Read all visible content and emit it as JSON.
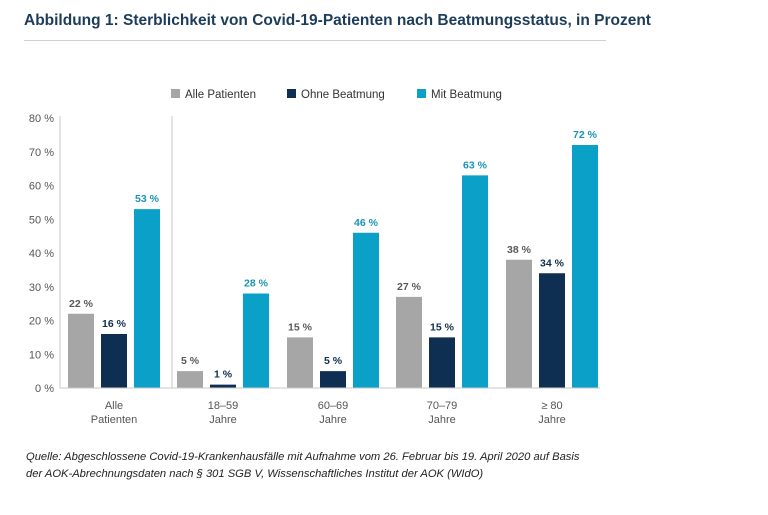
{
  "figure_title": "Abbildung 1: Sterblichkeit von Covid-19-Patienten nach Beatmungsstatus, in Prozent",
  "source_lines": [
    "Quelle: Abgeschlossene Covid-19-Krankenhausfälle mit Aufnahme vom 26. Februar bis 19. April 2020 auf Basis",
    "der AOK-Abrechnungsdaten nach § 301 SGB V, Wissenschaftliches Institut der AOK (WIdO)"
  ],
  "chart_data": {
    "type": "bar",
    "title": "Sterblichkeit von Covid-19-Patienten nach Beatmungsstatus, in Prozent",
    "categories": [
      [
        "Alle",
        "Patienten"
      ],
      [
        "18–59",
        "Jahre"
      ],
      [
        "60–69",
        "Jahre"
      ],
      [
        "70–79",
        "Jahre"
      ],
      [
        "≥ 80",
        "Jahre"
      ]
    ],
    "series": [
      {
        "name": "Alle Patienten",
        "color": "#a6a6a6",
        "label_color": "#595959",
        "values": [
          22,
          5,
          15,
          27,
          38
        ],
        "labels": [
          "22 %",
          "5 %",
          "15 %",
          "27 %",
          "38 %"
        ]
      },
      {
        "name": "Ohne Beatmung",
        "color": "#0f2f52",
        "label_color": "#0f2f52",
        "values": [
          16,
          1,
          5,
          15,
          34
        ],
        "labels": [
          "16 %",
          "1 %",
          "5 %",
          "15 %",
          "34 %"
        ]
      },
      {
        "name": "Mit Beatmung",
        "color": "#0aa0c8",
        "label_color": "#1a93b8",
        "values": [
          53,
          28,
          46,
          63,
          72
        ],
        "labels": [
          "53 %",
          "28 %",
          "46 %",
          "63 %",
          "72 %"
        ]
      }
    ],
    "ylim": [
      0,
      80
    ],
    "yticks": [
      0,
      10,
      20,
      30,
      40,
      50,
      60,
      70,
      80
    ],
    "ytick_labels": [
      "0 %",
      "10 %",
      "20 %",
      "30 %",
      "40 %",
      "50 %",
      "60 %",
      "70 %",
      "80 %"
    ],
    "legend_position": "top",
    "grid": false
  }
}
